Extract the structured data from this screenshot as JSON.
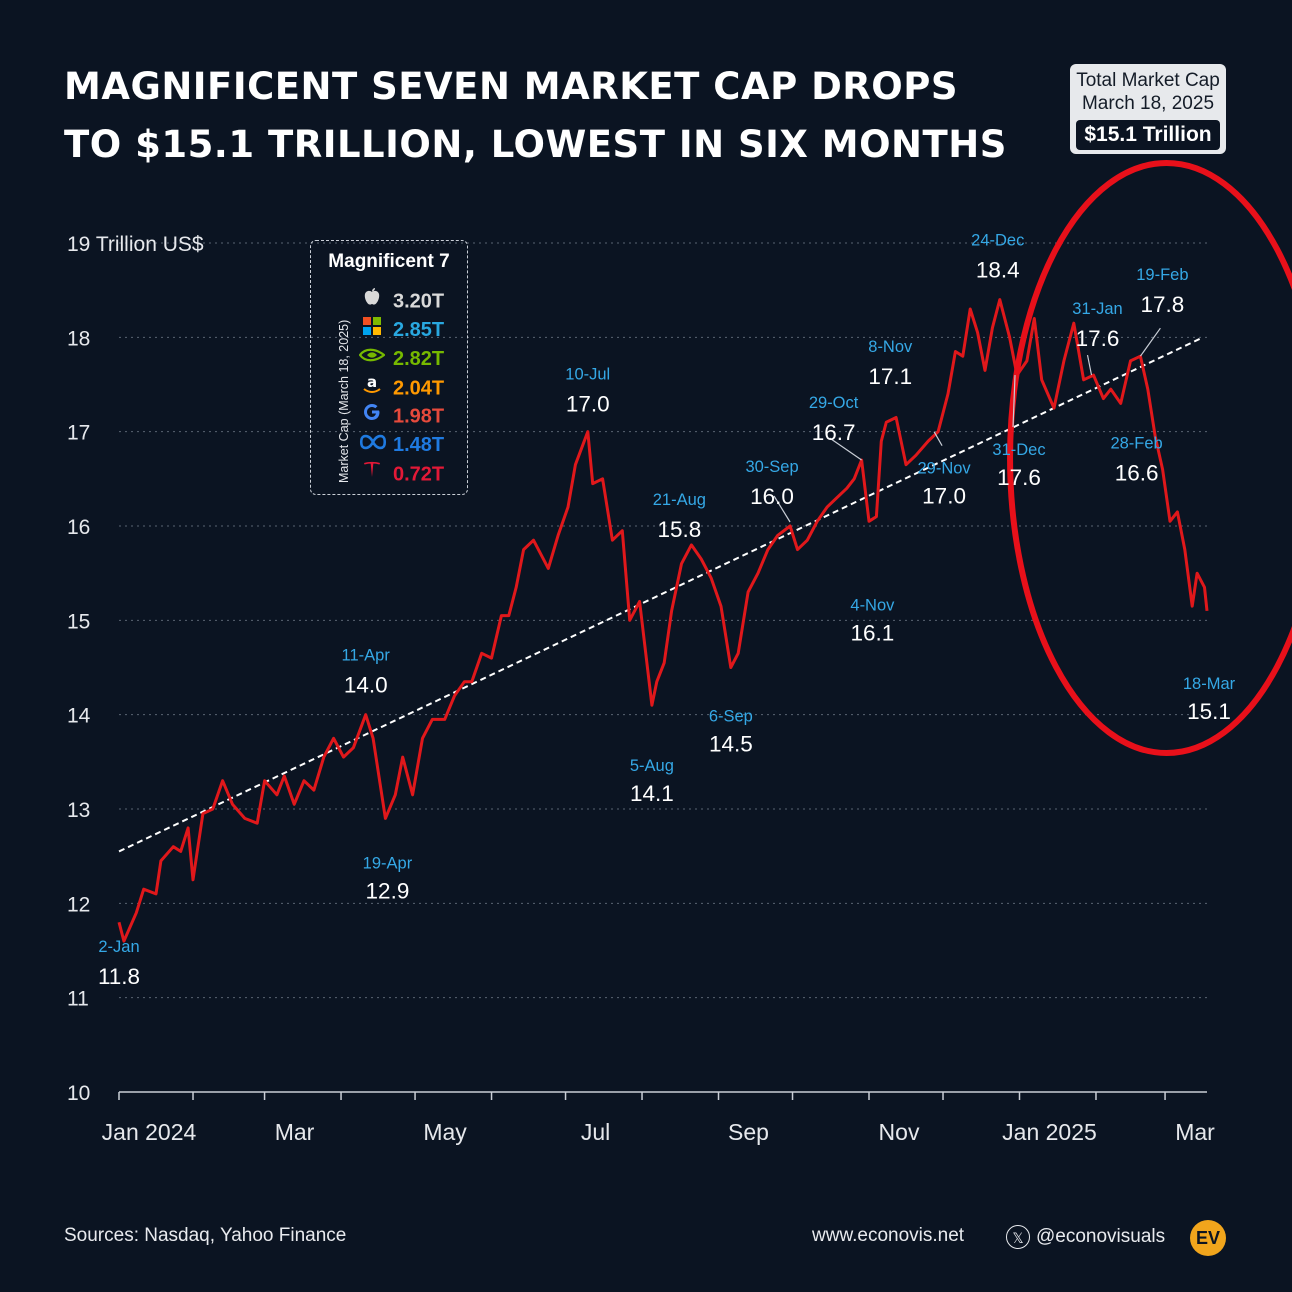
{
  "title_lines": [
    "MAGNIFICENT SEVEN MARKET CAP DROPS",
    "TO $15.1 TRILLION, LOWEST IN SIX MONTHS"
  ],
  "total_box": {
    "line1": "Total Market Cap",
    "line2": "March 18, 2025",
    "value": "$15.1 Trillion"
  },
  "legend": {
    "title": "Magnificent 7",
    "vertical_label": "Market Cap (March 18, 2025)",
    "items": [
      {
        "icon": "apple-icon",
        "value": "3.20T",
        "color": "#d9d9d9"
      },
      {
        "icon": "microsoft-icon",
        "value": "2.85T",
        "color": "#29a8e0"
      },
      {
        "icon": "nvidia-icon",
        "value": "2.82T",
        "color": "#76b900"
      },
      {
        "icon": "amazon-icon",
        "value": "2.04T",
        "color": "#ff9900"
      },
      {
        "icon": "google-icon",
        "value": "1.98T",
        "color": "#e64a3c"
      },
      {
        "icon": "meta-icon",
        "value": "1.48T",
        "color": "#1f7ae0"
      },
      {
        "icon": "tesla-icon",
        "value": "0.72T",
        "color": "#e31937"
      }
    ]
  },
  "chart_data": {
    "type": "line",
    "ylabel": "Trillion US$",
    "ylim": [
      10,
      19
    ],
    "y_ticks": [
      {
        "value": 10,
        "label": "10"
      },
      {
        "value": 11,
        "label": "11"
      },
      {
        "value": 12,
        "label": "12"
      },
      {
        "value": 13,
        "label": "13"
      },
      {
        "value": 14,
        "label": "14"
      },
      {
        "value": 15,
        "label": "15"
      },
      {
        "value": 16,
        "label": "16"
      },
      {
        "value": 17,
        "label": "17"
      },
      {
        "value": 18,
        "label": "18"
      },
      {
        "value": 19,
        "label": "19 Trillion US$"
      }
    ],
    "xlim": [
      "2024-01-02",
      "2025-03-18"
    ],
    "x_ticks": [
      {
        "date": "2024-01-01",
        "label": "Jan 2024"
      },
      {
        "date": "2024-03-01",
        "label": "Mar"
      },
      {
        "date": "2024-05-01",
        "label": "May"
      },
      {
        "date": "2024-07-01",
        "label": "Jul"
      },
      {
        "date": "2024-09-01",
        "label": "Sep"
      },
      {
        "date": "2024-11-01",
        "label": "Nov"
      },
      {
        "date": "2025-01-01",
        "label": "Jan 2025"
      },
      {
        "date": "2025-03-01",
        "label": "Mar"
      }
    ],
    "grid": "horizontal dotted",
    "line_color": "#e0181b",
    "series": [
      {
        "points": [
          [
            "2024-01-02",
            11.8
          ],
          [
            "2024-01-04",
            11.6
          ],
          [
            "2024-01-09",
            11.9
          ],
          [
            "2024-01-12",
            12.15
          ],
          [
            "2024-01-17",
            12.1
          ],
          [
            "2024-01-19",
            12.45
          ],
          [
            "2024-01-24",
            12.6
          ],
          [
            "2024-01-27",
            12.55
          ],
          [
            "2024-01-30",
            12.8
          ],
          [
            "2024-02-01",
            12.25
          ],
          [
            "2024-02-05",
            12.95
          ],
          [
            "2024-02-09",
            13.0
          ],
          [
            "2024-02-13",
            13.3
          ],
          [
            "2024-02-17",
            13.05
          ],
          [
            "2024-02-22",
            12.9
          ],
          [
            "2024-02-27",
            12.85
          ],
          [
            "2024-03-01",
            13.3
          ],
          [
            "2024-03-06",
            13.15
          ],
          [
            "2024-03-09",
            13.35
          ],
          [
            "2024-03-13",
            13.05
          ],
          [
            "2024-03-17",
            13.3
          ],
          [
            "2024-03-21",
            13.2
          ],
          [
            "2024-03-25",
            13.55
          ],
          [
            "2024-03-29",
            13.75
          ],
          [
            "2024-04-02",
            13.55
          ],
          [
            "2024-04-06",
            13.65
          ],
          [
            "2024-04-11",
            14.0
          ],
          [
            "2024-04-14",
            13.75
          ],
          [
            "2024-04-19",
            12.9
          ],
          [
            "2024-04-23",
            13.15
          ],
          [
            "2024-04-26",
            13.55
          ],
          [
            "2024-04-30",
            13.15
          ],
          [
            "2024-05-04",
            13.75
          ],
          [
            "2024-05-08",
            13.95
          ],
          [
            "2024-05-13",
            13.95
          ],
          [
            "2024-05-17",
            14.2
          ],
          [
            "2024-05-21",
            14.35
          ],
          [
            "2024-05-24",
            14.35
          ],
          [
            "2024-05-28",
            14.65
          ],
          [
            "2024-06-01",
            14.6
          ],
          [
            "2024-06-05",
            15.05
          ],
          [
            "2024-06-08",
            15.05
          ],
          [
            "2024-06-11",
            15.35
          ],
          [
            "2024-06-14",
            15.75
          ],
          [
            "2024-06-18",
            15.85
          ],
          [
            "2024-06-24",
            15.55
          ],
          [
            "2024-06-28",
            15.9
          ],
          [
            "2024-07-02",
            16.2
          ],
          [
            "2024-07-05",
            16.65
          ],
          [
            "2024-07-10",
            17.0
          ],
          [
            "2024-07-12",
            16.45
          ],
          [
            "2024-07-16",
            16.5
          ],
          [
            "2024-07-20",
            15.85
          ],
          [
            "2024-07-24",
            15.95
          ],
          [
            "2024-07-27",
            15.0
          ],
          [
            "2024-07-31",
            15.2
          ],
          [
            "2024-08-05",
            14.1
          ],
          [
            "2024-08-07",
            14.35
          ],
          [
            "2024-08-10",
            14.55
          ],
          [
            "2024-08-13",
            15.1
          ],
          [
            "2024-08-17",
            15.6
          ],
          [
            "2024-08-21",
            15.8
          ],
          [
            "2024-08-25",
            15.65
          ],
          [
            "2024-08-29",
            15.45
          ],
          [
            "2024-09-02",
            15.15
          ],
          [
            "2024-09-06",
            14.5
          ],
          [
            "2024-09-09",
            14.65
          ],
          [
            "2024-09-13",
            15.3
          ],
          [
            "2024-09-17",
            15.5
          ],
          [
            "2024-09-21",
            15.75
          ],
          [
            "2024-09-25",
            15.9
          ],
          [
            "2024-09-30",
            16.0
          ],
          [
            "2024-10-03",
            15.75
          ],
          [
            "2024-10-07",
            15.85
          ],
          [
            "2024-10-11",
            16.05
          ],
          [
            "2024-10-15",
            16.2
          ],
          [
            "2024-10-19",
            16.3
          ],
          [
            "2024-10-23",
            16.4
          ],
          [
            "2024-10-26",
            16.5
          ],
          [
            "2024-10-29",
            16.7
          ],
          [
            "2024-11-01",
            16.05
          ],
          [
            "2024-11-04",
            16.1
          ],
          [
            "2024-11-06",
            16.9
          ],
          [
            "2024-11-08",
            17.1
          ],
          [
            "2024-11-12",
            17.15
          ],
          [
            "2024-11-16",
            16.65
          ],
          [
            "2024-11-20",
            16.75
          ],
          [
            "2024-11-25",
            16.9
          ],
          [
            "2024-11-29",
            17.0
          ],
          [
            "2024-12-03",
            17.4
          ],
          [
            "2024-12-06",
            17.85
          ],
          [
            "2024-12-09",
            17.8
          ],
          [
            "2024-12-12",
            18.3
          ],
          [
            "2024-12-15",
            18.05
          ],
          [
            "2024-12-18",
            17.65
          ],
          [
            "2024-12-21",
            18.1
          ],
          [
            "2024-12-24",
            18.4
          ],
          [
            "2024-12-28",
            18.0
          ],
          [
            "2024-12-31",
            17.6
          ],
          [
            "2025-01-04",
            17.75
          ],
          [
            "2025-01-07",
            18.2
          ],
          [
            "2025-01-10",
            17.55
          ],
          [
            "2025-01-15",
            17.25
          ],
          [
            "2025-01-19",
            17.75
          ],
          [
            "2025-01-23",
            18.15
          ],
          [
            "2025-01-27",
            17.55
          ],
          [
            "2025-01-31",
            17.6
          ],
          [
            "2025-02-04",
            17.35
          ],
          [
            "2025-02-07",
            17.45
          ],
          [
            "2025-02-11",
            17.3
          ],
          [
            "2025-02-15",
            17.75
          ],
          [
            "2025-02-19",
            17.8
          ],
          [
            "2025-02-22",
            17.45
          ],
          [
            "2025-02-25",
            16.95
          ],
          [
            "2025-02-28",
            16.6
          ],
          [
            "2025-03-03",
            16.05
          ],
          [
            "2025-03-06",
            16.15
          ],
          [
            "2025-03-09",
            15.75
          ],
          [
            "2025-03-12",
            15.15
          ],
          [
            "2025-03-14",
            15.5
          ],
          [
            "2025-03-17",
            15.35
          ],
          [
            "2025-03-18",
            15.1
          ]
        ]
      }
    ],
    "trendline": {
      "start": [
        "2024-01-02",
        12.55
      ],
      "end": [
        "2025-03-18",
        18.0
      ]
    },
    "annotations": [
      {
        "date": "2024-01-02",
        "value": 11.8,
        "date_label": "2-Jan",
        "value_label": "11.8"
      },
      {
        "date": "2024-04-11",
        "value": 14.0,
        "date_label": "11-Apr",
        "value_label": "14.0"
      },
      {
        "date": "2024-04-19",
        "value": 12.9,
        "date_label": "19-Apr",
        "value_label": "12.9"
      },
      {
        "date": "2024-07-10",
        "value": 17.0,
        "date_label": "10-Jul",
        "value_label": "17.0"
      },
      {
        "date": "2024-08-05",
        "value": 14.1,
        "date_label": "5-Aug",
        "value_label": "14.1"
      },
      {
        "date": "2024-08-21",
        "value": 15.8,
        "date_label": "21-Aug",
        "value_label": "15.8"
      },
      {
        "date": "2024-09-06",
        "value": 14.5,
        "date_label": "6-Sep",
        "value_label": "14.5"
      },
      {
        "date": "2024-09-30",
        "value": 16.0,
        "date_label": "30-Sep",
        "value_label": "16.0"
      },
      {
        "date": "2024-10-29",
        "value": 16.7,
        "date_label": "29-Oct",
        "value_label": "16.7"
      },
      {
        "date": "2024-11-04",
        "value": 16.1,
        "date_label": "4-Nov",
        "value_label": "16.1"
      },
      {
        "date": "2024-11-08",
        "value": 17.1,
        "date_label": "8-Nov",
        "value_label": "17.1"
      },
      {
        "date": "2024-11-29",
        "value": 17.0,
        "date_label": "29-Nov",
        "value_label": "17.0"
      },
      {
        "date": "2024-12-24",
        "value": 18.4,
        "date_label": "24-Dec",
        "value_label": "18.4"
      },
      {
        "date": "2024-12-31",
        "value": 17.6,
        "date_label": "31-Dec",
        "value_label": "17.6"
      },
      {
        "date": "2025-01-31",
        "value": 17.6,
        "date_label": "31-Jan",
        "value_label": "17.6"
      },
      {
        "date": "2025-02-19",
        "value": 17.8,
        "date_label": "19-Feb",
        "value_label": "17.8"
      },
      {
        "date": "2025-02-28",
        "value": 16.6,
        "date_label": "28-Feb",
        "value_label": "16.6"
      },
      {
        "date": "2025-03-18",
        "value": 15.1,
        "date_label": "18-Mar",
        "value_label": "15.1"
      }
    ],
    "highlight": {
      "shape": "ellipse",
      "color": "#e8101a",
      "period": [
        "2025-01-15",
        "2025-03-18"
      ]
    }
  },
  "footer": {
    "sources": "Sources: Nasdaq, Yahoo Finance",
    "website": "www.econovis.net",
    "social_icon": "x-icon",
    "social": "@econovisuals",
    "logo_text": "EV"
  }
}
